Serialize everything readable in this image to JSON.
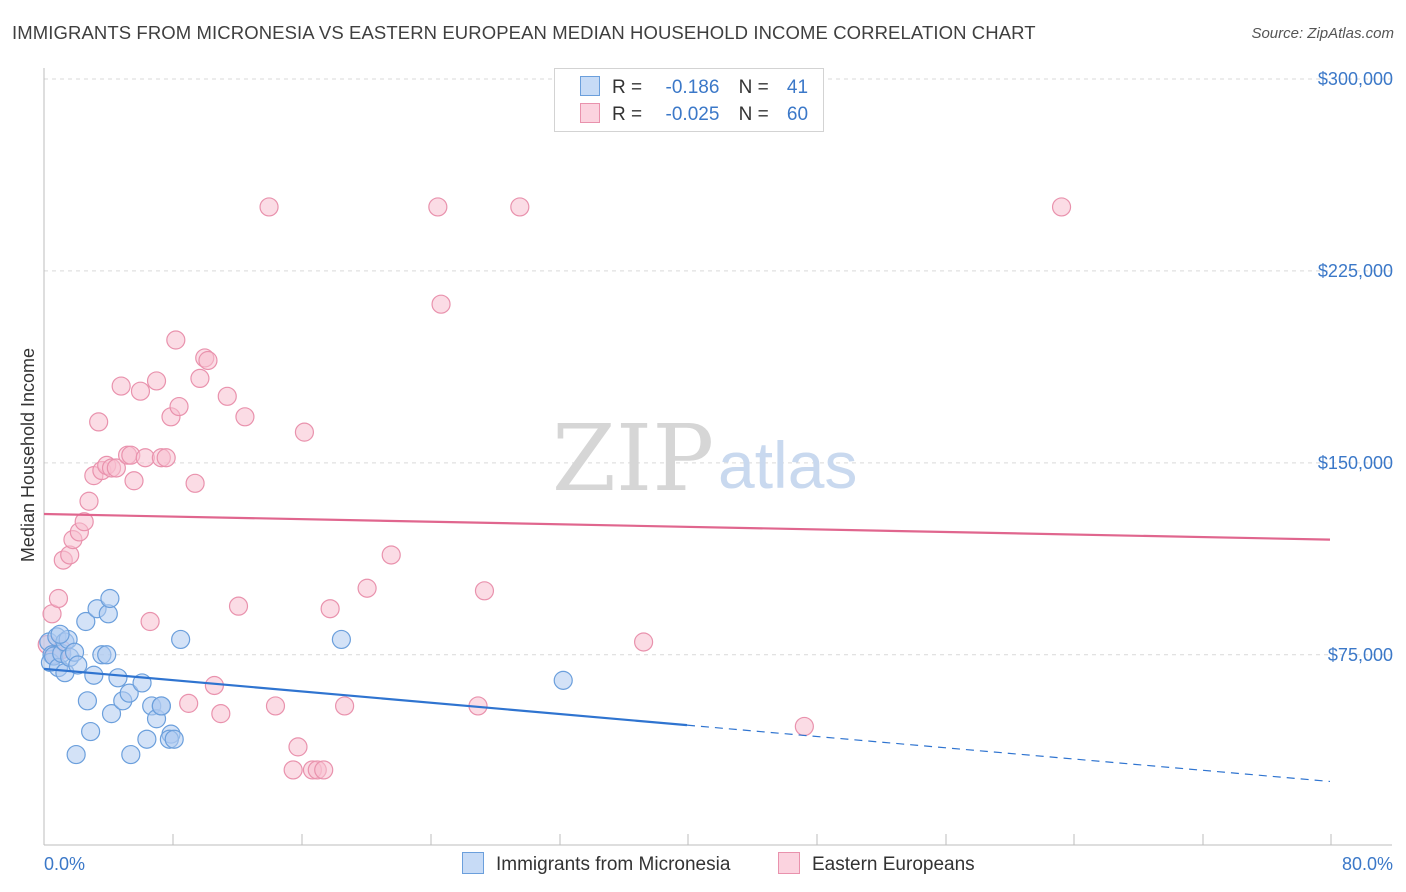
{
  "title": "IMMIGRANTS FROM MICRONESIA VS EASTERN EUROPEAN MEDIAN HOUSEHOLD INCOME CORRELATION CHART",
  "source": "Source: ZipAtlas.com",
  "watermark": {
    "zip": "ZIP",
    "atlas": "atlas"
  },
  "legend": {
    "r_label": "R =",
    "n_label": "N =",
    "rows": [
      {
        "r": "-0.186",
        "n": "41"
      },
      {
        "r": "-0.025",
        "n": "60"
      }
    ]
  },
  "colors": {
    "blue_fill": "#aecbf0",
    "blue_stroke": "#6b9fdc",
    "blue_line": "#2f74d0",
    "pink_fill": "#f7c0d0",
    "pink_stroke": "#e992ad",
    "pink_line": "#e0668e",
    "tick_text": "#3b78c8"
  },
  "chart_data": {
    "type": "scatter",
    "title": "IMMIGRANTS FROM MICRONESIA VS EASTERN EUROPEAN MEDIAN HOUSEHOLD INCOME CORRELATION CHART",
    "xlabel": "",
    "ylabel": "Median Household Income",
    "xlim": [
      0,
      80
    ],
    "ylim": [
      0,
      315000
    ],
    "x_tick_labels": {
      "left": "0.0%",
      "right": "80.0%"
    },
    "y_ticks": [
      {
        "value": 75000,
        "label": "$75,000"
      },
      {
        "value": 150000,
        "label": "$150,000"
      },
      {
        "value": 225000,
        "label": "$225,000"
      },
      {
        "value": 300000,
        "label": "$300,000"
      }
    ],
    "grid": true,
    "legend_position": "bottom",
    "series": [
      {
        "name": "Immigrants from Micronesia",
        "color": "#aecbf0",
        "R": -0.186,
        "N": 41,
        "trend": {
          "x0": 0,
          "y0": 69500,
          "x1": 40,
          "y1": 47500,
          "dash_to_x": 80,
          "dash_to_y": 25500
        },
        "points": [
          [
            0.3,
            80000
          ],
          [
            0.5,
            75000
          ],
          [
            0.4,
            72000
          ],
          [
            0.6,
            74500
          ],
          [
            0.8,
            82000
          ],
          [
            0.9,
            70000
          ],
          [
            1.1,
            75500
          ],
          [
            1.3,
            68000
          ],
          [
            1.3,
            80000
          ],
          [
            1.5,
            81000
          ],
          [
            1.6,
            74000
          ],
          [
            1.9,
            76000
          ],
          [
            2.1,
            71000
          ],
          [
            2.6,
            88000
          ],
          [
            2.7,
            57000
          ],
          [
            2.9,
            45000
          ],
          [
            3.1,
            67000
          ],
          [
            3.3,
            93000
          ],
          [
            2.0,
            36000
          ],
          [
            3.6,
            75000
          ],
          [
            3.9,
            75000
          ],
          [
            4.0,
            91000
          ],
          [
            4.1,
            97000
          ],
          [
            4.2,
            52000
          ],
          [
            4.6,
            66000
          ],
          [
            4.9,
            57000
          ],
          [
            5.3,
            60000
          ],
          [
            5.4,
            36000
          ],
          [
            6.1,
            64000
          ],
          [
            6.4,
            42000
          ],
          [
            6.7,
            55000
          ],
          [
            7.0,
            50000
          ],
          [
            7.3,
            55000
          ],
          [
            7.3,
            55000
          ],
          [
            7.9,
            44000
          ],
          [
            7.8,
            42000
          ],
          [
            8.1,
            42000
          ],
          [
            8.5,
            81000
          ],
          [
            18.5,
            81000
          ],
          [
            32.3,
            65000
          ],
          [
            1.0,
            83000
          ]
        ]
      },
      {
        "name": "Eastern Europeans",
        "color": "#f7c0d0",
        "R": -0.025,
        "N": 60,
        "trend": {
          "x0": 0,
          "y0": 130000,
          "x1": 80,
          "y1": 120000
        },
        "points": [
          [
            0.2,
            79000
          ],
          [
            0.5,
            91000
          ],
          [
            0.7,
            75000
          ],
          [
            0.9,
            97000
          ],
          [
            1.1,
            77000
          ],
          [
            1.2,
            112000
          ],
          [
            1.6,
            114000
          ],
          [
            1.8,
            120000
          ],
          [
            2.2,
            123000
          ],
          [
            2.5,
            127000
          ],
          [
            2.8,
            135000
          ],
          [
            3.1,
            145000
          ],
          [
            3.4,
            166000
          ],
          [
            3.6,
            147000
          ],
          [
            3.9,
            149000
          ],
          [
            4.2,
            148000
          ],
          [
            4.5,
            148000
          ],
          [
            4.8,
            180000
          ],
          [
            5.2,
            153000
          ],
          [
            5.4,
            153000
          ],
          [
            5.6,
            143000
          ],
          [
            6.0,
            178000
          ],
          [
            6.3,
            152000
          ],
          [
            6.6,
            88000
          ],
          [
            7.0,
            182000
          ],
          [
            7.3,
            152000
          ],
          [
            7.6,
            152000
          ],
          [
            7.9,
            168000
          ],
          [
            8.2,
            198000
          ],
          [
            8.4,
            172000
          ],
          [
            9.0,
            56000
          ],
          [
            9.4,
            142000
          ],
          [
            9.7,
            183000
          ],
          [
            10.0,
            191000
          ],
          [
            10.2,
            190000
          ],
          [
            10.6,
            63000
          ],
          [
            11.0,
            52000
          ],
          [
            11.4,
            176000
          ],
          [
            12.1,
            94000
          ],
          [
            12.5,
            168000
          ],
          [
            14.0,
            250000
          ],
          [
            14.4,
            55000
          ],
          [
            15.5,
            30000
          ],
          [
            15.8,
            39000
          ],
          [
            16.2,
            162000
          ],
          [
            16.7,
            30000
          ],
          [
            17.0,
            30000
          ],
          [
            17.4,
            30000
          ],
          [
            17.8,
            93000
          ],
          [
            18.7,
            55000
          ],
          [
            20.1,
            101000
          ],
          [
            21.6,
            114000
          ],
          [
            24.5,
            250000
          ],
          [
            24.7,
            212000
          ],
          [
            27.0,
            55000
          ],
          [
            27.4,
            100000
          ],
          [
            29.6,
            250000
          ],
          [
            37.3,
            80000
          ],
          [
            47.3,
            47000
          ],
          [
            63.3,
            250000
          ]
        ]
      }
    ]
  }
}
